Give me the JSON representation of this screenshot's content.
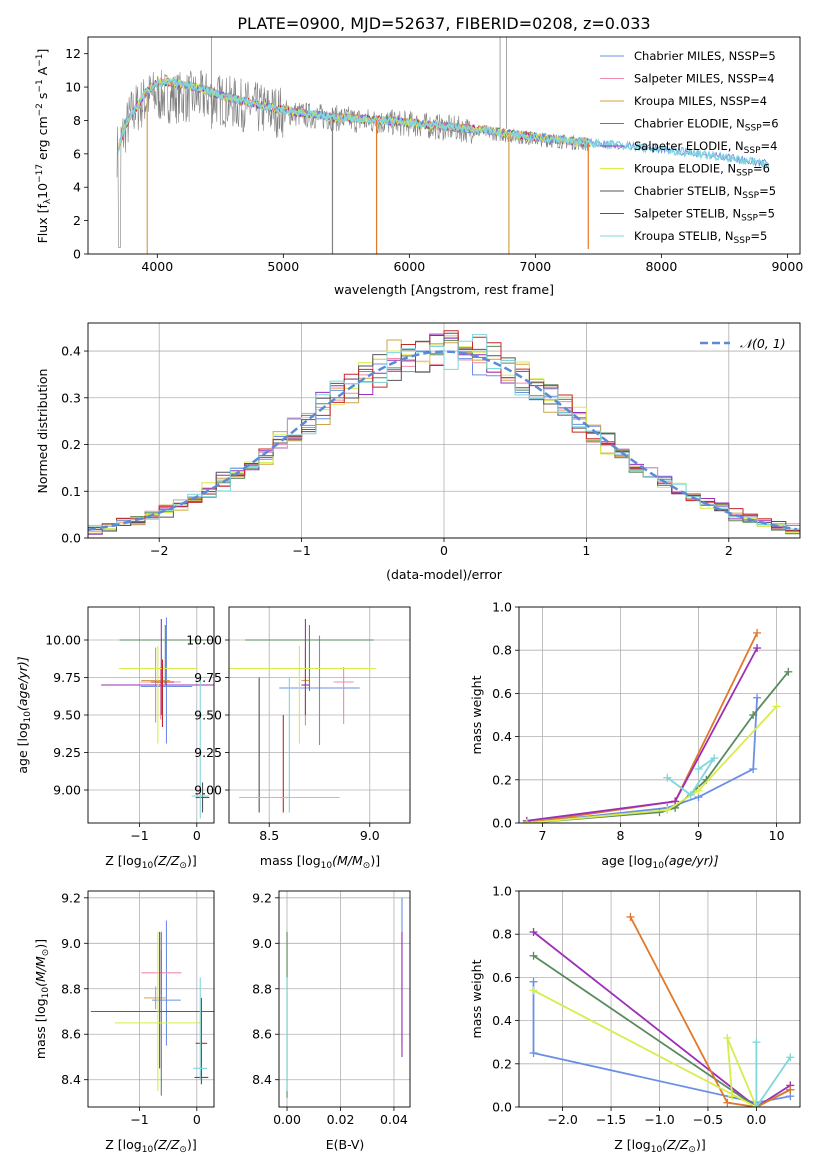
{
  "figure": {
    "title": "PLATE=0900, MJD=52637, FIBERID=0208, z=0.033"
  },
  "models": [
    {
      "name": "Chabrier MILES, N",
      "sub": "SSP",
      "n": "=5",
      "color": "#6b8fe6"
    },
    {
      "name": "Salpeter MILES, N",
      "sub": "SSP",
      "n": "=4",
      "color": "#f08caa"
    },
    {
      "name": "Kroupa MILES, N",
      "sub": "SSP",
      "n": "=4",
      "color": "#d2a24a"
    },
    {
      "name": "Chabrier ELODIE, N",
      "sub": "SSP",
      "n": "=6",
      "color": "#5b8a5e"
    },
    {
      "name": "Salpeter ELODIE, N",
      "sub": "SSP",
      "n": "=4",
      "color": "#9b2fb8"
    },
    {
      "name": "Kroupa ELODIE, N",
      "sub": "SSP",
      "n": "=6",
      "color": "#d8ec4c"
    },
    {
      "name": "Chabrier STELIB, N",
      "sub": "SSP",
      "n": "=5",
      "color": "#555555"
    },
    {
      "name": "Salpeter STELIB, N",
      "sub": "SSP",
      "n": "=5",
      "color": "#c62828"
    },
    {
      "name": "Kroupa STELIB, N",
      "sub": "SSP",
      "n": "=5",
      "color": "#7fd6dc"
    }
  ],
  "chart_data": [
    {
      "id": "spectrum",
      "type": "line",
      "xlabel": "wavelength [Angstrom, rest frame]",
      "ylabel_parts": [
        "Flux [f",
        "λ",
        "10",
        "−17",
        " erg cm",
        "−2",
        " s",
        "−1",
        " A",
        "−1",
        "]"
      ],
      "xlim": [
        3450,
        9100
      ],
      "ylim": [
        0,
        13
      ],
      "xticks": [
        4000,
        5000,
        6000,
        7000,
        8000,
        9000
      ],
      "yticks": [
        0,
        2,
        4,
        6,
        8,
        10,
        12
      ],
      "legend_loc": "upper right",
      "data_series": {
        "name": "",
        "color": "#808080",
        "x_range": [
          3680,
          7420
        ],
        "continuum": [
          [
            3680,
            6.2
          ],
          [
            3800,
            8.5
          ],
          [
            3950,
            9.5
          ],
          [
            4100,
            9.4
          ],
          [
            4400,
            9.4
          ],
          [
            4800,
            8.7
          ],
          [
            5200,
            8.3
          ],
          [
            5600,
            8.0
          ],
          [
            6000,
            7.8
          ],
          [
            6500,
            7.4
          ],
          [
            7000,
            6.9
          ],
          [
            7420,
            6.6
          ]
        ]
      },
      "model_continuum": [
        [
          3680,
          6.1
        ],
        [
          3750,
          7.8
        ],
        [
          3900,
          9.6
        ],
        [
          4000,
          10.3
        ],
        [
          4100,
          10.3
        ],
        [
          4300,
          10.0
        ],
        [
          4600,
          9.3
        ],
        [
          5000,
          8.6
        ],
        [
          5400,
          8.2
        ],
        [
          5800,
          8.0
        ],
        [
          6200,
          7.7
        ],
        [
          6600,
          7.4
        ],
        [
          7000,
          7.0
        ],
        [
          7500,
          6.6
        ],
        [
          8000,
          6.3
        ],
        [
          8500,
          5.8
        ],
        [
          8850,
          5.4
        ]
      ],
      "dips": [
        {
          "x": 3920,
          "y": 0.0,
          "color": "#d2a24a"
        },
        {
          "x": 5390,
          "y": 0.0,
          "color": "#808080"
        },
        {
          "x": 5740,
          "y": 0.0,
          "color": "#e0792a"
        },
        {
          "x": 6790,
          "y": 0.0,
          "color": "#d2a24a"
        },
        {
          "x": 7420,
          "y": 0.3,
          "color": "#e0792a"
        }
      ]
    },
    {
      "id": "residuals",
      "type": "histogram",
      "xlabel": "(data-model)/error",
      "ylabel": "Normed distribution",
      "xlim": [
        -2.5,
        2.5
      ],
      "ylim": [
        0,
        0.46
      ],
      "xticks": [
        -2,
        -1,
        0,
        1,
        2
      ],
      "yticks": [
        0.0,
        0.1,
        0.2,
        0.3,
        0.4
      ],
      "legend": "𝒩(0, 1)",
      "legend_loc": "upper right",
      "bins": 50,
      "reference_curve": {
        "type": "gaussian",
        "mean": 0,
        "sigma": 1,
        "color": "#5b8bd6"
      }
    },
    {
      "id": "age_vs_Z",
      "type": "scatter",
      "xlabel_parts": [
        "Z [log",
        "10",
        "(Z/Z",
        "⊙",
        ")]"
      ],
      "ylabel_parts": [
        "age  [log",
        "10",
        "(age/yr)]"
      ],
      "xlim": [
        -1.9,
        0.3
      ],
      "ylim": [
        8.78,
        10.22
      ],
      "xticks": [
        -1,
        0
      ],
      "yticks": [
        9.0,
        9.25,
        9.5,
        9.75,
        10.0
      ],
      "points": [
        {
          "m": 0,
          "x": -0.53,
          "xerr": 0.45,
          "y": 9.69,
          "yerr": [
            0.38,
            0.46
          ]
        },
        {
          "m": 1,
          "x": -0.63,
          "xerr": 0.35,
          "y": 9.72,
          "yerr": [
            0.25,
            0.1
          ]
        },
        {
          "m": 2,
          "x": -0.72,
          "xerr": 0.25,
          "y": 9.73,
          "yerr": [
            0.28,
            0.22
          ]
        },
        {
          "m": 3,
          "x": -0.55,
          "xerr": 0.8,
          "y": 10.0,
          "yerr": [
            0.3,
            0.1
          ]
        },
        {
          "m": 4,
          "x": -0.62,
          "xerr": 1.05,
          "y": 9.7,
          "yerr": [
            0.2,
            0.44
          ]
        },
        {
          "m": 5,
          "x": -0.68,
          "xerr": 0.68,
          "y": 9.81,
          "yerr": [
            0.5,
            0.15
          ]
        },
        {
          "m": 6,
          "x": 0.1,
          "xerr": 0.12,
          "y": 8.95,
          "yerr": [
            0.1,
            0.1
          ]
        },
        {
          "m": 7,
          "x": -0.6,
          "xerr": 0.2,
          "y": 9.72,
          "yerr": [
            0.3,
            0.15
          ]
        },
        {
          "m": 8,
          "x": 0.06,
          "xerr": 0.15,
          "y": 8.96,
          "yerr": [
            0.15,
            0.8
          ]
        }
      ]
    },
    {
      "id": "age_vs_mass",
      "type": "scatter",
      "xlabel_parts": [
        "mass [log",
        "10",
        "(M/M",
        "⊙",
        ")]"
      ],
      "xlim": [
        8.3,
        9.2
      ],
      "ylim": [
        8.78,
        10.22
      ],
      "xticks": [
        8.5,
        9.0
      ],
      "yticks": [
        9.0,
        9.25,
        9.5,
        9.75,
        10.0
      ],
      "points": [
        {
          "m": 0,
          "x": 8.75,
          "xerr": 0.2,
          "y": 9.68,
          "yerr": [
            0.38,
            0.35
          ]
        },
        {
          "m": 1,
          "x": 8.87,
          "xerr": 0.05,
          "y": 9.72,
          "yerr": [
            0.28,
            0.1
          ]
        },
        {
          "m": 2,
          "x": 8.68,
          "xerr": 0.02,
          "y": 9.73,
          "yerr": [
            0.3,
            0.22
          ]
        },
        {
          "m": 3,
          "x": 8.7,
          "xerr": 0.32,
          "y": 10.0,
          "yerr": [
            0.34,
            0.1
          ]
        },
        {
          "m": 4,
          "x": 8.68,
          "xerr": 0.02,
          "y": 9.7,
          "yerr": [
            0.2,
            0.44
          ]
        },
        {
          "m": 5,
          "x": 8.65,
          "xerr": 0.38,
          "y": 9.81,
          "yerr": [
            0.5,
            0.15
          ]
        },
        {
          "m": 6,
          "x": 8.45,
          "xerr": 0.08,
          "y": 8.95,
          "yerr": [
            0.1,
            0.8
          ]
        },
        {
          "m": 7,
          "x": 8.57,
          "xerr": 0.02,
          "y": 8.95,
          "yerr": [
            0.1,
            0.55
          ]
        },
        {
          "m": 8,
          "x": 8.6,
          "xerr": 0.25,
          "y": 8.95,
          "yerr": [
            0.1,
            0.8
          ]
        }
      ]
    },
    {
      "id": "weight_vs_age",
      "type": "line",
      "xlabel_parts": [
        "age  [log",
        "10",
        "(age/yr)]"
      ],
      "ylabel": "mass weight",
      "xlim": [
        6.7,
        10.3
      ],
      "ylim": [
        0,
        1.0
      ],
      "xticks": [
        7,
        8,
        9,
        10
      ],
      "yticks": [
        0.0,
        0.2,
        0.4,
        0.6,
        0.8,
        1.0
      ],
      "series": [
        {
          "m": 0,
          "pts": [
            [
              6.8,
              0.0
            ],
            [
              8.6,
              0.07
            ],
            [
              9.0,
              0.12
            ],
            [
              9.7,
              0.25
            ],
            [
              9.75,
              0.58
            ]
          ]
        },
        {
          "m": 2,
          "pts": [
            [
              6.8,
              0.0
            ],
            [
              8.7,
              0.1
            ],
            [
              9.75,
              0.88
            ]
          ]
        },
        {
          "m": 4,
          "pts": [
            [
              6.8,
              0.01
            ],
            [
              8.7,
              0.1
            ],
            [
              9.75,
              0.81
            ]
          ]
        },
        {
          "m": 3,
          "pts": [
            [
              6.8,
              0.0
            ],
            [
              8.5,
              0.05
            ],
            [
              8.7,
              0.07
            ],
            [
              9.1,
              0.2
            ],
            [
              9.7,
              0.5
            ],
            [
              10.15,
              0.7
            ]
          ]
        },
        {
          "m": 5,
          "pts": [
            [
              6.8,
              0.0
            ],
            [
              8.6,
              0.06
            ],
            [
              9.0,
              0.15
            ],
            [
              10.0,
              0.54
            ]
          ]
        },
        {
          "m": 8,
          "pts": [
            [
              8.6,
              0.21
            ],
            [
              8.9,
              0.13
            ],
            [
              9.2,
              0.3
            ],
            [
              9.0,
              0.25
            ]
          ]
        }
      ]
    },
    {
      "id": "mass_vs_Z",
      "type": "scatter",
      "xlabel_parts": [
        "Z [log",
        "10",
        "(Z/Z",
        "⊙",
        ")]"
      ],
      "ylabel_parts": [
        "mass [log",
        "10",
        "(M/M",
        "⊙",
        ")]"
      ],
      "xlim": [
        -1.9,
        0.3
      ],
      "ylim": [
        8.28,
        9.23
      ],
      "xticks": [
        -1,
        0
      ],
      "yticks": [
        8.4,
        8.6,
        8.8,
        9.0,
        9.2
      ],
      "points": [
        {
          "m": 0,
          "x": -0.53,
          "xerr": 0.25,
          "y": 8.75,
          "yerr": [
            0.2,
            0.35
          ]
        },
        {
          "m": 1,
          "x": -0.62,
          "xerr": 0.35,
          "y": 8.87,
          "yerr": [
            0.1,
            0.1
          ]
        },
        {
          "m": 2,
          "x": -0.72,
          "xerr": 0.2,
          "y": 8.76,
          "yerr": [
            0.05,
            0.05
          ]
        },
        {
          "m": 3,
          "x": -0.62,
          "xerr": 0.7,
          "y": 8.7,
          "yerr": [
            0.37,
            0.35
          ]
        },
        {
          "m": 4,
          "x": -0.65,
          "xerr": 1.2,
          "y": 8.7,
          "yerr": [
            0.25,
            0.35
          ]
        },
        {
          "m": 5,
          "x": -0.68,
          "xerr": 0.75,
          "y": 8.65,
          "yerr": [
            0.3,
            0.4
          ]
        },
        {
          "m": 6,
          "x": 0.08,
          "xerr": 0.12,
          "y": 8.41,
          "yerr": [
            0.03,
            0.03
          ]
        },
        {
          "m": 7,
          "x": 0.08,
          "xerr": 0.1,
          "y": 8.56,
          "yerr": [
            0.15,
            0.2
          ]
        },
        {
          "m": 8,
          "x": 0.06,
          "xerr": 0.12,
          "y": 8.45,
          "yerr": [
            0.05,
            0.4
          ]
        }
      ]
    },
    {
      "id": "mass_vs_ebv",
      "type": "scatter",
      "xlabel": "E(B-V)",
      "xlim": [
        -0.003,
        0.046
      ],
      "ylim": [
        8.28,
        9.23
      ],
      "xticks": [
        0.0,
        0.02,
        0.04
      ],
      "yticks": [
        8.4,
        8.6,
        8.8,
        9.0,
        9.2
      ],
      "points": [
        {
          "m": 0,
          "x": 0.043,
          "xerr": 0,
          "y": 8.75,
          "yerr": [
            0.2,
            0.45
          ]
        },
        {
          "m": 4,
          "x": 0.043,
          "xerr": 0,
          "y": 8.75,
          "yerr": [
            0.25,
            0.3
          ]
        },
        {
          "m": 5,
          "x": 0.0,
          "xerr": 0,
          "y": 8.7,
          "yerr": [
            0.3,
            0.35
          ]
        },
        {
          "m": 3,
          "x": 0.0,
          "xerr": 0,
          "y": 8.65,
          "yerr": [
            0.33,
            0.4
          ]
        },
        {
          "m": 8,
          "x": 0.0,
          "xerr": 0,
          "y": 8.45,
          "yerr": [
            0.1,
            0.4
          ]
        }
      ]
    },
    {
      "id": "weight_vs_Z",
      "type": "line",
      "xlabel_parts": [
        "Z [log",
        "10",
        "(Z/Z",
        "⊙",
        ")]"
      ],
      "ylabel": "mass weight",
      "xlim": [
        -2.45,
        0.45
      ],
      "ylim": [
        0,
        1.0
      ],
      "xticks": [
        -2.0,
        -1.5,
        -1.0,
        -0.5,
        0.0
      ],
      "yticks": [
        0.0,
        0.2,
        0.4,
        0.6,
        0.8,
        1.0
      ],
      "xtick_labels": [
        "−2.0",
        "−1.5",
        "−1.0",
        "−0.5",
        "0.0"
      ],
      "series": [
        {
          "m": 0,
          "pts": [
            [
              -2.3,
              0.58
            ],
            [
              -2.3,
              0.25
            ],
            [
              0.0,
              0.02
            ],
            [
              0.35,
              0.05
            ]
          ]
        },
        {
          "m": 4,
          "pts": [
            [
              -2.3,
              0.81
            ],
            [
              0.0,
              0.0
            ],
            [
              0.35,
              0.1
            ]
          ]
        },
        {
          "m": 3,
          "pts": [
            [
              -2.3,
              0.7
            ],
            [
              0.0,
              0.0
            ],
            [
              0.35,
              0.08
            ]
          ]
        },
        {
          "m": 2,
          "pts": [
            [
              -1.3,
              0.88
            ],
            [
              -0.3,
              0.02
            ],
            [
              0.0,
              0.0
            ],
            [
              0.35,
              0.08
            ]
          ]
        },
        {
          "m": 5,
          "pts": [
            [
              -2.3,
              0.54
            ],
            [
              0.0,
              0.0
            ],
            [
              -0.3,
              0.32
            ],
            [
              -0.25,
              0.05
            ]
          ]
        },
        {
          "m": 8,
          "pts": [
            [
              0.0,
              0.3
            ],
            [
              0.0,
              0.0
            ],
            [
              0.35,
              0.23
            ]
          ]
        }
      ]
    }
  ]
}
